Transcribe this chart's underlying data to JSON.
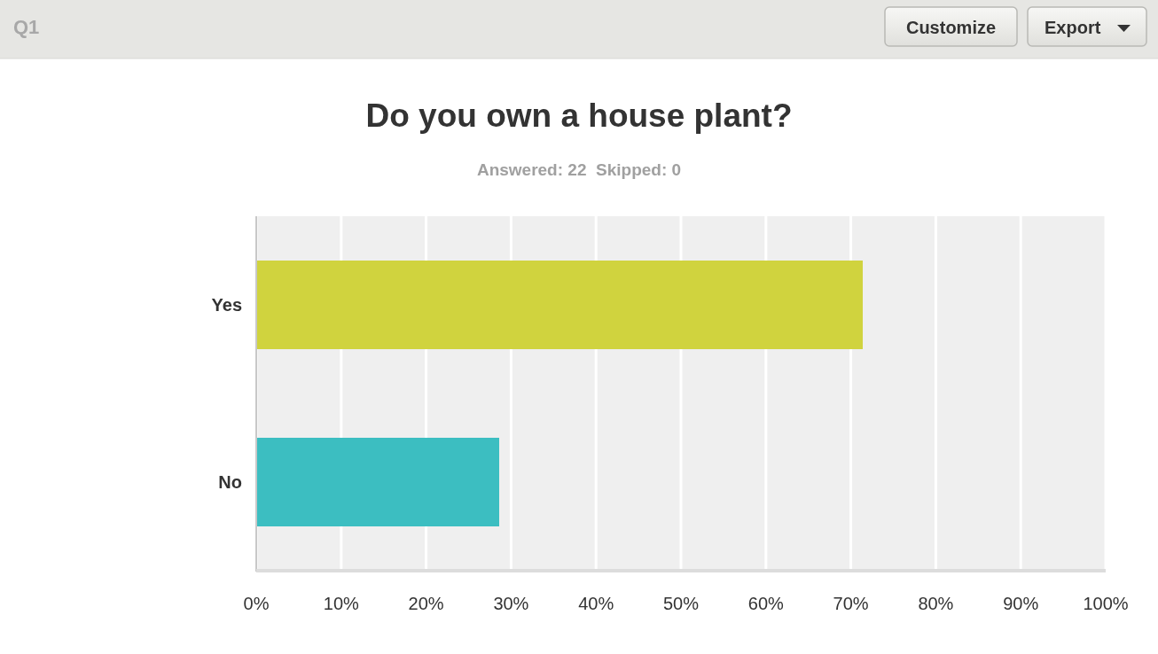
{
  "chart_data": {
    "type": "bar",
    "orientation": "horizontal",
    "title": "Do you own a house plant?",
    "subtitle": "Answered: 22  Skipped: 0",
    "annotations": [
      "Q1",
      "Customize",
      "Export"
    ],
    "categories": [
      "Yes",
      "No"
    ],
    "values": [
      71.4,
      28.6
    ],
    "colors": [
      "#d0d33e",
      "#3cbec1"
    ],
    "xlim": [
      0,
      100
    ],
    "xticks": [
      {
        "value": 0,
        "label": "0%"
      },
      {
        "value": 10,
        "label": "10%"
      },
      {
        "value": 20,
        "label": "20%"
      },
      {
        "value": 30,
        "label": "30%"
      },
      {
        "value": 40,
        "label": "40%"
      },
      {
        "value": 50,
        "label": "50%"
      },
      {
        "value": 60,
        "label": "60%"
      },
      {
        "value": 70,
        "label": "70%"
      },
      {
        "value": 80,
        "label": "80%"
      },
      {
        "value": 90,
        "label": "90%"
      },
      {
        "value": 100,
        "label": "100%"
      }
    ],
    "grid": "x"
  }
}
